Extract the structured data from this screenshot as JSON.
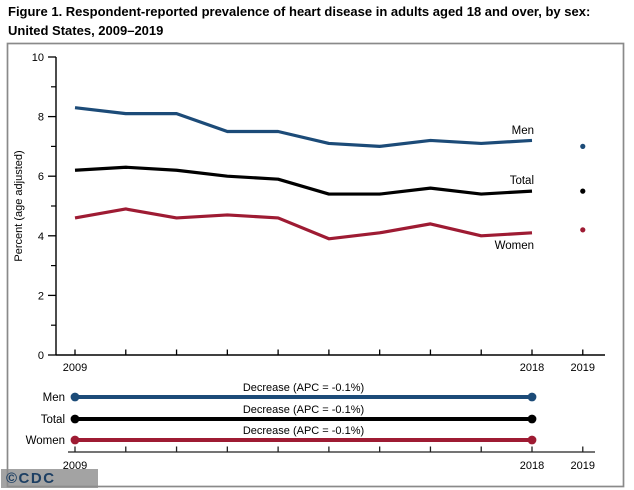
{
  "figure": {
    "title": "Figure 1. Respondent-reported prevalence of heart disease in adults aged 18 and over, by sex: United States, 2009–2019",
    "watermark": "©CDC"
  },
  "chart_data": {
    "type": "line",
    "title": "Figure 1. Respondent-reported prevalence of heart disease in adults aged 18 and over, by sex: United States, 2009–2019",
    "xlabel": "",
    "ylabel": "Percent (age adjusted)",
    "ylim": [
      0,
      10
    ],
    "yticks_labeled": [
      0,
      2,
      4,
      6,
      8,
      10
    ],
    "yticks_minor": [
      1,
      3,
      5,
      7,
      9
    ],
    "x": [
      2009,
      2010,
      2011,
      2012,
      2013,
      2014,
      2015,
      2016,
      2017,
      2018
    ],
    "xticks_all": [
      2009,
      2010,
      2011,
      2012,
      2013,
      2014,
      2015,
      2016,
      2017,
      2018,
      2019
    ],
    "xticks_labeled": [
      2009,
      2018,
      2019
    ],
    "grid": false,
    "legend_position": "inline-right",
    "series": [
      {
        "name": "Men",
        "color": "#1c4b78",
        "values": [
          8.3,
          8.1,
          8.1,
          7.5,
          7.5,
          7.1,
          7.0,
          7.2,
          7.1,
          7.2
        ],
        "point_2019": 7.0
      },
      {
        "name": "Total",
        "color": "#000000",
        "values": [
          6.2,
          6.3,
          6.2,
          6.0,
          5.9,
          5.4,
          5.4,
          5.6,
          5.4,
          5.5
        ],
        "point_2019": 5.5
      },
      {
        "name": "Women",
        "color": "#9e1b33",
        "values": [
          4.6,
          4.9,
          4.6,
          4.7,
          4.6,
          3.9,
          4.1,
          4.4,
          4.0,
          4.1
        ],
        "point_2019": 4.2
      }
    ],
    "trend_panel": {
      "x_start": 2009,
      "x_end": 2018,
      "xticks_all": [
        2009,
        2010,
        2011,
        2012,
        2013,
        2014,
        2015,
        2016,
        2017,
        2018,
        2019
      ],
      "xticks_labeled": [
        2009,
        2018,
        2019
      ],
      "rows": [
        {
          "name": "Men",
          "color": "#1c4b78",
          "annotation": "Decrease (APC = -0.1%)"
        },
        {
          "name": "Total",
          "color": "#000000",
          "annotation": "Decrease (APC = -0.1%)"
        },
        {
          "name": "Women",
          "color": "#9e1b33",
          "annotation": "Decrease (APC = -0.1%)"
        }
      ]
    }
  }
}
